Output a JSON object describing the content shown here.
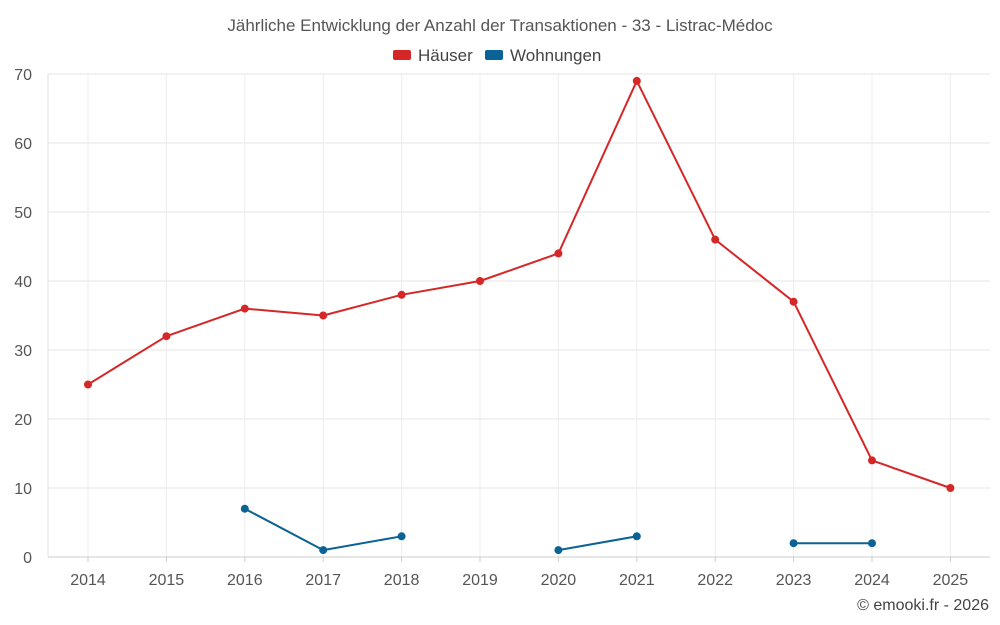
{
  "chart_data": {
    "type": "line",
    "title": "Jährliche Entwicklung der Anzahl der Transaktionen - 33 - Listrac-Médoc",
    "categories": [
      "2014",
      "2015",
      "2016",
      "2017",
      "2018",
      "2019",
      "2020",
      "2021",
      "2022",
      "2023",
      "2024",
      "2025"
    ],
    "ylim": [
      0,
      70
    ],
    "yticks": [
      0,
      10,
      20,
      30,
      40,
      50,
      60,
      70
    ],
    "grid": true,
    "legend_position": "top-center",
    "series": [
      {
        "name": "Häuser",
        "color": "#d62728",
        "values": [
          25,
          32,
          36,
          35,
          38,
          40,
          44,
          69,
          46,
          37,
          14,
          10
        ]
      },
      {
        "name": "Wohnungen",
        "color": "#0b6296",
        "values": [
          null,
          null,
          7,
          1,
          3,
          null,
          1,
          3,
          null,
          2,
          2,
          null
        ]
      }
    ],
    "credit": "© emooki.fr - 2026"
  }
}
